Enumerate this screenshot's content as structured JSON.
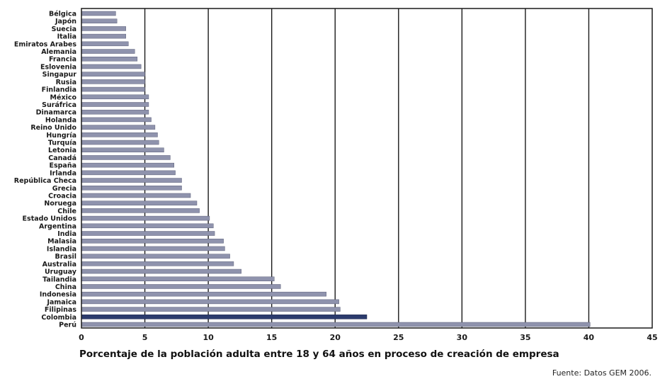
{
  "chart_data": {
    "type": "bar",
    "orientation": "horizontal",
    "categories": [
      "Bélgica",
      "Japón",
      "Suecia",
      "Italia",
      "Emiratos Arabes",
      "Alemania",
      "Francia",
      "Eslovenia",
      "Singapur",
      "Rusia",
      "Finlandia",
      "México",
      "Suráfrica",
      "Dinamarca",
      "Holanda",
      "Reino Unido",
      "Hungría",
      "Turquía",
      "Letonia",
      "Canadá",
      "España",
      "Irlanda",
      "República Checa",
      "Grecia",
      "Croacia",
      "Noruega",
      "Chile",
      "Estado Unidos",
      "Argentina",
      "India",
      "Malasia",
      "Islandia",
      "Brasil",
      "Australia",
      "Uruguay",
      "Tailandia",
      "China",
      "Indonesia",
      "Jamaica",
      "Filipinas",
      "Colombia",
      "Perú"
    ],
    "values": [
      2.7,
      2.8,
      3.5,
      3.5,
      3.7,
      4.2,
      4.4,
      4.7,
      5.0,
      5.0,
      5.0,
      5.3,
      5.3,
      5.3,
      5.5,
      5.8,
      6.0,
      6.1,
      6.5,
      7.0,
      7.3,
      7.4,
      7.9,
      7.9,
      8.6,
      9.1,
      9.3,
      10.1,
      10.4,
      10.5,
      11.2,
      11.3,
      11.7,
      12.0,
      12.6,
      15.2,
      15.7,
      19.3,
      20.3,
      20.4,
      22.5,
      40.1
    ],
    "highlight": [
      "Colombia"
    ],
    "bar_color": "#8f93ad",
    "highlight_color": "#2c3b6d",
    "xlim": [
      0,
      45
    ],
    "xticks": [
      "0",
      "5",
      "10",
      "15",
      "20",
      "25",
      "30",
      "35",
      "40",
      "45"
    ],
    "xlabel": "Porcentaje de la población adulta entre 18 y 64 años en proceso de creación de empresa",
    "grid": "vertical"
  },
  "source": "Fuente: Datos GEM 2006."
}
